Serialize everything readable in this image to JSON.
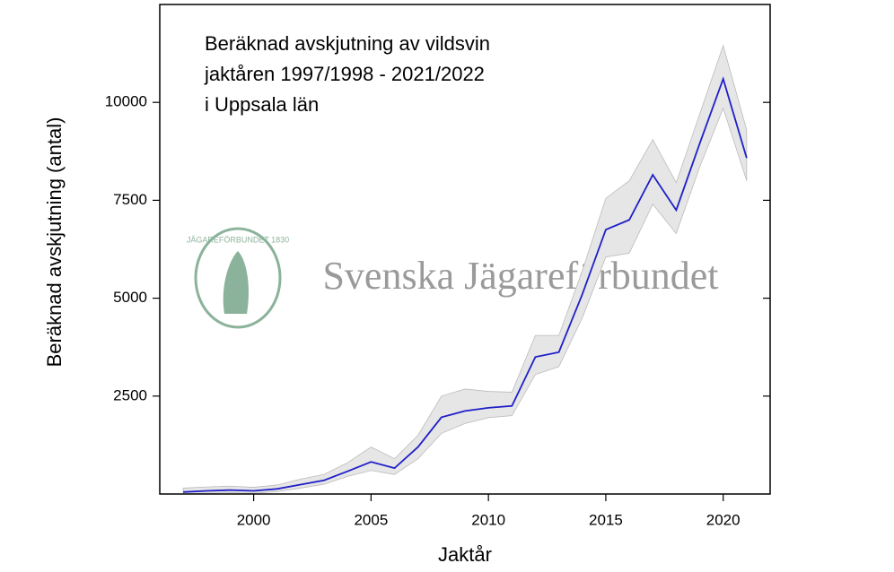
{
  "chart_data": {
    "type": "line",
    "title": [
      "Beräknad avskjutning av vildsvin",
      "jaktåren 1997/1998 - 2021/2022",
      "i Uppsala län"
    ],
    "xlabel": "Jaktår",
    "ylabel": "Beräknad avskjutning (antal)",
    "watermark": "Svenska Jägareförbundet",
    "logo_text": "JÄGAREFÖRBUNDET 1830",
    "x": [
      1997,
      1998,
      1999,
      2000,
      2001,
      2002,
      2003,
      2004,
      2005,
      2006,
      2007,
      2008,
      2009,
      2010,
      2011,
      2012,
      2013,
      2014,
      2015,
      2016,
      2017,
      2018,
      2019,
      2020,
      2021
    ],
    "values": [
      50,
      80,
      100,
      80,
      130,
      240,
      350,
      580,
      820,
      660,
      1200,
      1960,
      2120,
      2200,
      2250,
      3500,
      3620,
      5100,
      6750,
      7000,
      8150,
      7250,
      8950,
      10600,
      8580
    ],
    "lower": [
      0,
      20,
      30,
      20,
      60,
      150,
      250,
      450,
      600,
      500,
      900,
      1550,
      1800,
      1950,
      2000,
      3050,
      3250,
      4500,
      6050,
      6150,
      7400,
      6650,
      8350,
      9850,
      8000
    ],
    "upper": [
      150,
      180,
      200,
      170,
      230,
      380,
      500,
      800,
      1200,
      900,
      1500,
      2500,
      2680,
      2620,
      2600,
      4050,
      4050,
      5700,
      7550,
      8000,
      9050,
      7950,
      9700,
      11450,
      9300
    ],
    "color": "#1f1fc8",
    "band_color": "#e6e6e6",
    "xlim": [
      1996,
      2022
    ],
    "ylim": [
      0,
      12500
    ],
    "xticks": [
      2000,
      2005,
      2010,
      2015,
      2020
    ],
    "yticks": [
      2500,
      5000,
      7500,
      10000
    ]
  }
}
